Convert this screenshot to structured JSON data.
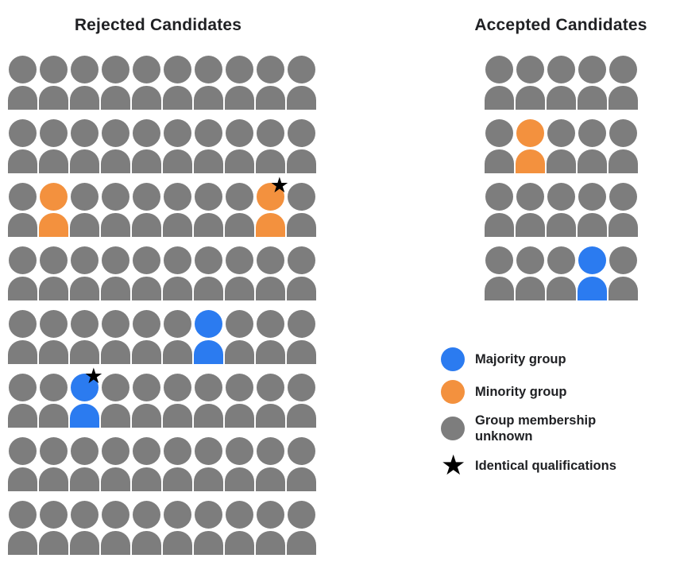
{
  "rejected": {
    "title": "Rejected Candidates",
    "rows": [
      "gggggggggg",
      "gggggggggg",
      "goggggggog",
      "gggggggggg",
      "ggggggbggg",
      "ggbggggggg",
      "gggggggggg",
      "gggggggggg"
    ],
    "stars": [
      [
        2,
        8
      ],
      [
        5,
        2
      ]
    ],
    "summary": {
      "total": 80,
      "majority": 2,
      "minority": 2,
      "unknown": 76,
      "starred": 2
    }
  },
  "accepted": {
    "title": "Accepted Candidates",
    "rows": [
      "ggggg",
      "goggg",
      "ggggg",
      "gggbg"
    ],
    "stars": [],
    "summary": {
      "total": 20,
      "majority": 1,
      "minority": 1,
      "unknown": 18,
      "starred": 0
    }
  },
  "legend": {
    "items": [
      {
        "key": "majority-group",
        "shape": "circle",
        "colorKey": "majority",
        "label": "Majority group"
      },
      {
        "key": "minority-group",
        "shape": "circle",
        "colorKey": "minority",
        "label": "Minority group"
      },
      {
        "key": "membership-unknown",
        "shape": "circle",
        "colorKey": "unknown",
        "label": "Group membership unknown"
      },
      {
        "key": "identical-qualifications",
        "shape": "star",
        "colorKey": "star",
        "label": "Identical qualifications"
      }
    ]
  },
  "glyphs": {
    "star": "★"
  },
  "colors": {
    "majority": "#2B7BF0",
    "minority": "#F3913E",
    "unknown": "#7D7D7D",
    "star": "#000000",
    "text": "#202124",
    "background": "#FFFFFF"
  }
}
